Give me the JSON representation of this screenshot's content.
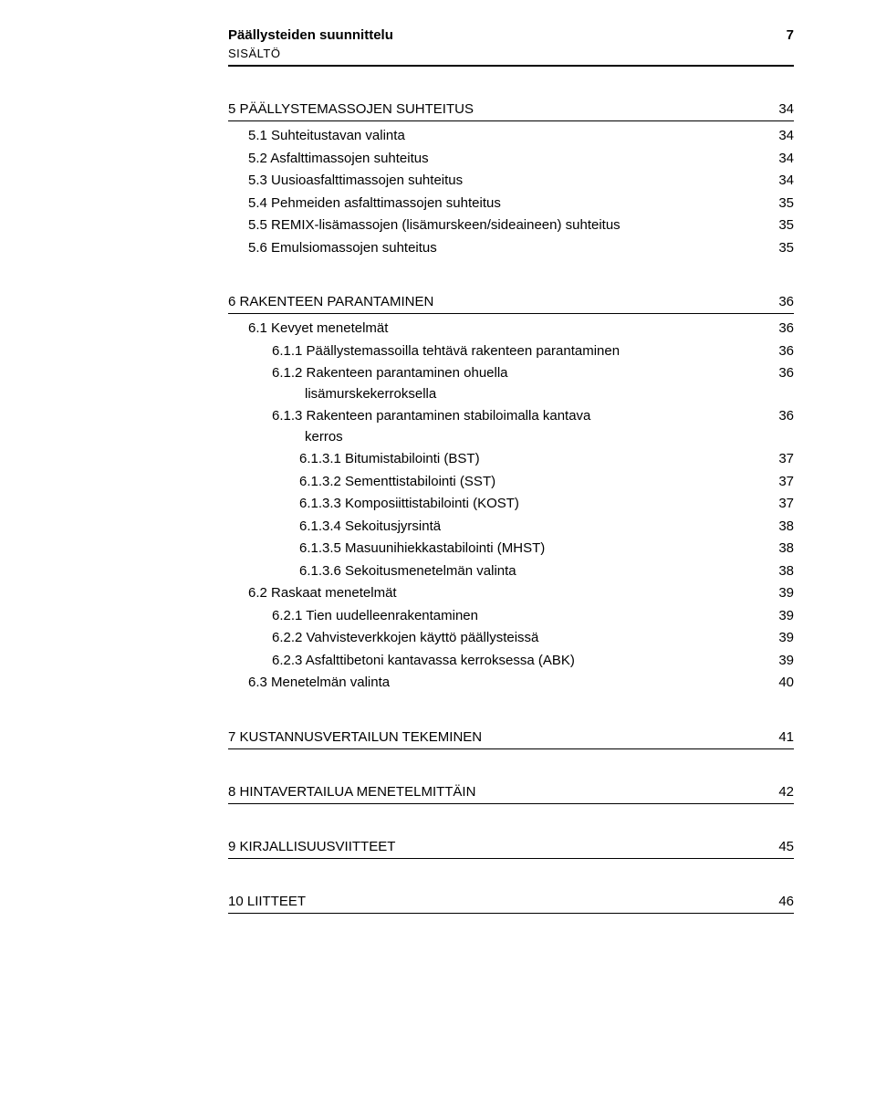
{
  "header": {
    "title": "Päällysteiden suunnittelu",
    "page_number": "7",
    "subtitle": "SISÄLTÖ"
  },
  "sections": [
    {
      "title": "5 PÄÄLLYSTEMASSOJEN SUHTEITUS",
      "page": "34",
      "entries": [
        {
          "indent": 1,
          "label": "5.1 Suhteitustavan valinta",
          "page": "34"
        },
        {
          "indent": 1,
          "label": "5.2 Asfalttimassojen suhteitus",
          "page": "34"
        },
        {
          "indent": 1,
          "label": "5.3 Uusioasfalttimassojen suhteitus",
          "page": "34"
        },
        {
          "indent": 1,
          "label": "5.4 Pehmeiden asfalttimassojen suhteitus",
          "page": "35"
        },
        {
          "indent": 1,
          "label": "5.5 REMIX-lisämassojen (lisämurskeen/sideaineen) suhteitus",
          "page": "35"
        },
        {
          "indent": 1,
          "label": "5.6 Emulsiomassojen suhteitus",
          "page": "35"
        }
      ]
    },
    {
      "title": "6 RAKENTEEN PARANTAMINEN",
      "page": "36",
      "entries": [
        {
          "indent": 1,
          "label": "6.1 Kevyet menetelmät",
          "page": "36"
        },
        {
          "indent": 2,
          "label": "6.1.1 Päällystemassoilla tehtävä rakenteen parantaminen",
          "page": "36"
        },
        {
          "indent": 2,
          "two_line": true,
          "line1": "6.1.2 Rakenteen parantaminen ohuella",
          "line2": "lisämurskekerroksella",
          "page": "36"
        },
        {
          "indent": 2,
          "two_line": true,
          "line1": "6.1.3 Rakenteen parantaminen stabiloimalla kantava",
          "line2": "kerros",
          "page": "36"
        },
        {
          "indent": 3,
          "label": "6.1.3.1 Bitumistabilointi (BST)",
          "page": "37"
        },
        {
          "indent": 3,
          "label": "6.1.3.2 Sementtistabilointi (SST)",
          "page": "37"
        },
        {
          "indent": 3,
          "label": "6.1.3.3 Komposiittistabilointi (KOST)",
          "page": "37"
        },
        {
          "indent": 3,
          "label": "6.1.3.4 Sekoitusjyrsintä",
          "page": "38"
        },
        {
          "indent": 3,
          "label": "6.1.3.5 Masuunihiekkastabilointi (MHST)",
          "page": "38"
        },
        {
          "indent": 3,
          "label": "6.1.3.6 Sekoitusmenetelmän valinta",
          "page": "38"
        },
        {
          "indent": 1,
          "label": "6.2 Raskaat menetelmät",
          "page": "39"
        },
        {
          "indent": 2,
          "label": "6.2.1 Tien uudelleenrakentaminen",
          "page": "39"
        },
        {
          "indent": 2,
          "label": "6.2.2 Vahvisteverkkojen käyttö päällysteissä",
          "page": "39"
        },
        {
          "indent": 2,
          "label": "6.2.3 Asfalttibetoni kantavassa kerroksessa (ABK)",
          "page": "39"
        },
        {
          "indent": 1,
          "label": "6.3 Menetelmän valinta",
          "page": "40"
        }
      ]
    },
    {
      "title": "7 KUSTANNUSVERTAILUN TEKEMINEN",
      "page": "41",
      "entries": []
    },
    {
      "title": "8 HINTAVERTAILUA MENETELMITTÄIN",
      "page": "42",
      "entries": []
    },
    {
      "title": "9 KIRJALLISUUSVIITTEET",
      "page": "45",
      "entries": []
    },
    {
      "title": "10 LIITTEET",
      "page": "46",
      "entries": []
    }
  ]
}
